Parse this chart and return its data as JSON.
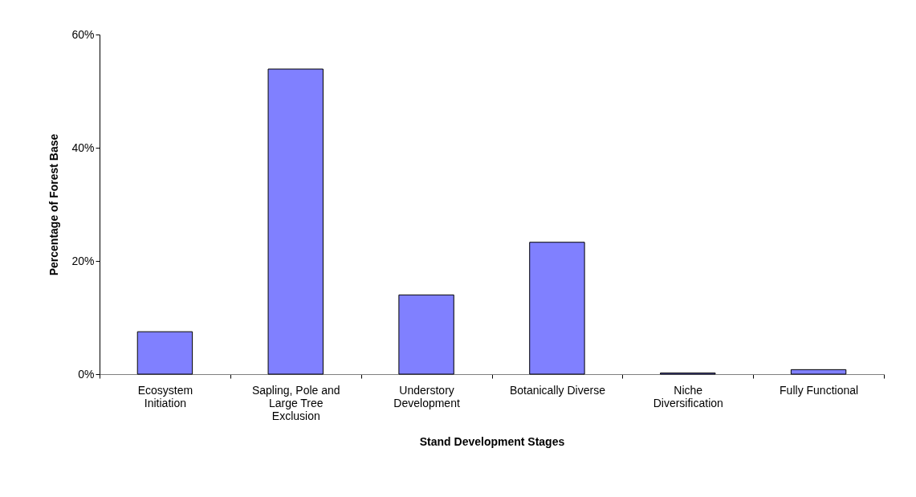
{
  "chart_data": {
    "type": "bar",
    "xlabel": "Stand Development Stages",
    "ylabel": "Percentage of Forest Base",
    "categories": [
      "Ecosystem Initiation",
      "Sapling, Pole and Large Tree Exclusion",
      "Understory Development",
      "Botanically Diverse",
      "Niche Diversification",
      "Fully Functional"
    ],
    "values": [
      7.5,
      53.9,
      14.0,
      23.3,
      0.2,
      0.8
    ],
    "color": "#8080ff",
    "ylim": [
      0,
      60
    ],
    "yticks": [
      {
        "value": 0,
        "label": "0%"
      },
      {
        "value": 20,
        "label": "20%"
      },
      {
        "value": 40,
        "label": "40%"
      },
      {
        "value": 60,
        "label": "60%"
      }
    ],
    "grid": false
  }
}
